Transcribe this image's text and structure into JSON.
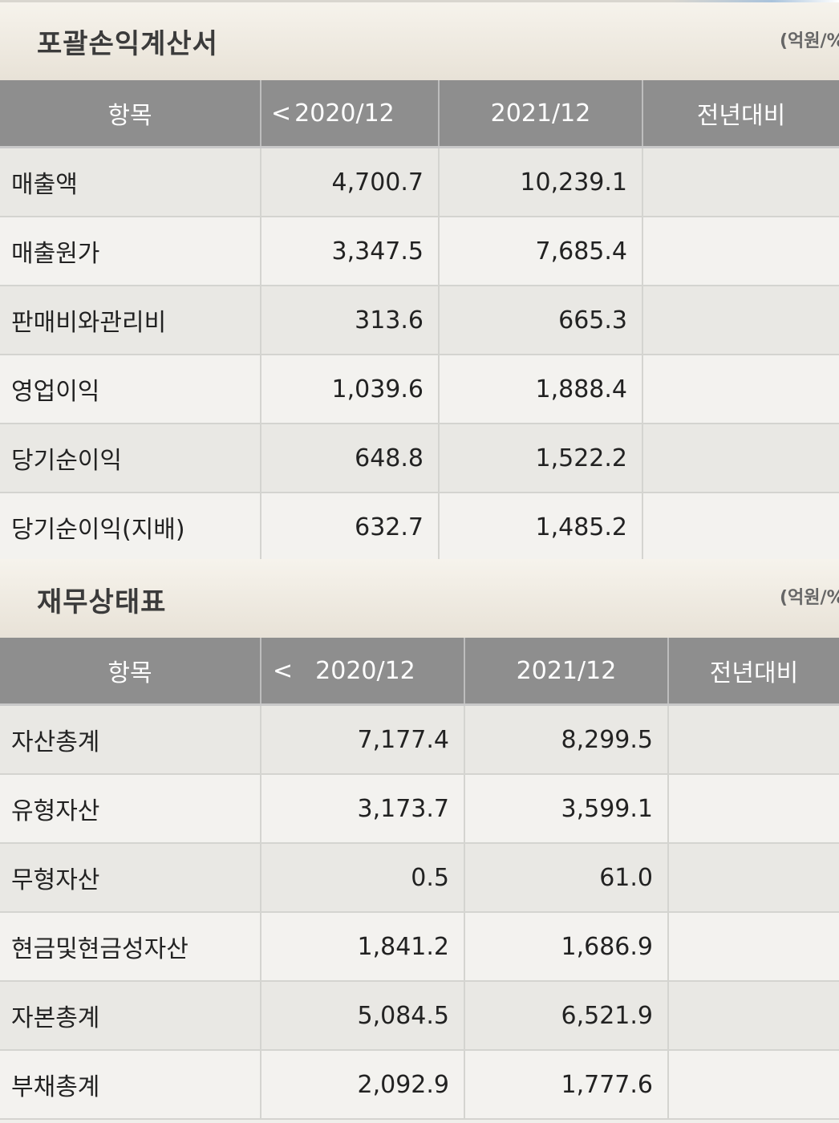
{
  "income_statement": {
    "title": "포괄손익계산서",
    "unit": "(억원/%)",
    "headers": {
      "item": "항목",
      "prev_arrow": "<",
      "col1": "2020/12",
      "col2": "2021/12",
      "yoy": "전년대비"
    },
    "rows": [
      {
        "label": "매출액",
        "v2020": "4,700.7",
        "v2021": "10,239.1",
        "yoy": ""
      },
      {
        "label": "매출원가",
        "v2020": "3,347.5",
        "v2021": "7,685.4",
        "yoy": ""
      },
      {
        "label": "판매비와관리비",
        "v2020": "313.6",
        "v2021": "665.3",
        "yoy": ""
      },
      {
        "label": "영업이익",
        "v2020": "1,039.6",
        "v2021": "1,888.4",
        "yoy": ""
      },
      {
        "label": "당기순이익",
        "v2020": "648.8",
        "v2021": "1,522.2",
        "yoy": ""
      },
      {
        "label": "당기순이익(지배)",
        "v2020": "632.7",
        "v2021": "1,485.2",
        "yoy": ""
      }
    ]
  },
  "balance_sheet": {
    "title": "재무상태표",
    "unit": "(억원/%)",
    "headers": {
      "item": "항목",
      "prev_arrow": "<",
      "col1": "2020/12",
      "col2": "2021/12",
      "yoy": "전년대비"
    },
    "rows": [
      {
        "label": "자산총계",
        "v2020": "7,177.4",
        "v2021": "8,299.5",
        "yoy": ""
      },
      {
        "label": "유형자산",
        "v2020": "3,173.7",
        "v2021": "3,599.1",
        "yoy": ""
      },
      {
        "label": "무형자산",
        "v2020": "0.5",
        "v2021": "61.0",
        "yoy": ""
      },
      {
        "label": "현금및현금성자산",
        "v2020": "1,841.2",
        "v2021": "1,686.9",
        "yoy": ""
      },
      {
        "label": "자본총계",
        "v2020": "5,084.5",
        "v2021": "6,521.9",
        "yoy": ""
      },
      {
        "label": "부채총계",
        "v2020": "2,092.9",
        "v2021": "1,777.6",
        "yoy": ""
      }
    ]
  }
}
